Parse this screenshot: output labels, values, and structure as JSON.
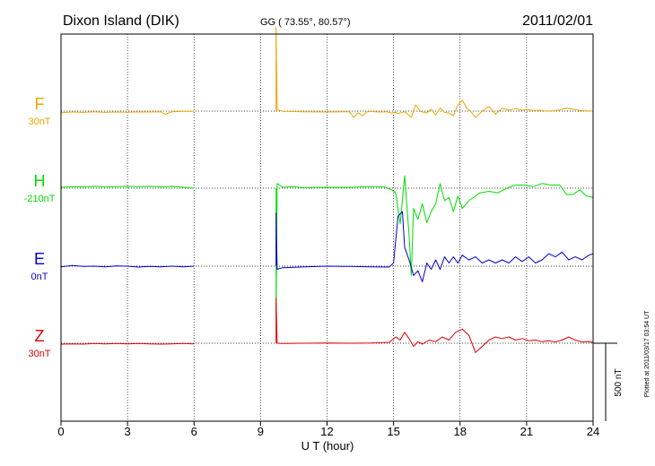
{
  "chart_data": {
    "type": "line",
    "title": "Dixon Island (DIK)",
    "coords": "GG ( 73.55°,  80.57°)",
    "date": "2011/02/01",
    "xlabel": "U T (hour)",
    "xlim": [
      0,
      24
    ],
    "xticks": [
      "0",
      "3",
      "6",
      "9",
      "12",
      "15",
      "18",
      "21",
      "24"
    ],
    "scale_label": "500 nT",
    "scale_nT": 500,
    "footer": "Plotted at 2011/03/17 03:54 UT",
    "grid": true,
    "series": [
      {
        "name": "F",
        "baseline": "30nT",
        "color": "#f0a500",
        "key": "F"
      },
      {
        "name": "H",
        "baseline": "-210nT",
        "color": "#00dd00",
        "key": "H"
      },
      {
        "name": "E",
        "baseline": "0nT",
        "color": "#0000cc",
        "key": "E"
      },
      {
        "name": "Z",
        "baseline": "30nT",
        "color": "#dd0000",
        "key": "Z"
      }
    ],
    "data_gap": [
      6.0,
      9.7
    ],
    "traces_nT": {
      "F": [
        [
          0,
          -10
        ],
        [
          0.5,
          -6
        ],
        [
          1,
          -8
        ],
        [
          1.5,
          -4
        ],
        [
          2,
          -8
        ],
        [
          2.5,
          -6
        ],
        [
          3,
          -7
        ],
        [
          3.5,
          -5
        ],
        [
          4,
          -6
        ],
        [
          4.5,
          -4
        ],
        [
          4.7,
          -20
        ],
        [
          5,
          -4
        ],
        [
          5.5,
          -2
        ],
        [
          6,
          -2
        ],
        [
          9.7,
          540
        ],
        [
          9.75,
          10
        ],
        [
          10,
          -2
        ],
        [
          11,
          -4
        ],
        [
          12,
          -6
        ],
        [
          13,
          -4
        ],
        [
          13.2,
          -40
        ],
        [
          13.4,
          -10
        ],
        [
          13.6,
          -30
        ],
        [
          13.8,
          -4
        ],
        [
          14,
          -2
        ],
        [
          14.3,
          -6
        ],
        [
          14.7,
          -4
        ],
        [
          14.9,
          -12
        ],
        [
          15.1,
          -8
        ],
        [
          15.2,
          -16
        ],
        [
          15.5,
          -4
        ],
        [
          15.8,
          -40
        ],
        [
          16.0,
          40
        ],
        [
          16.2,
          -2
        ],
        [
          16.5,
          -12
        ],
        [
          16.7,
          12
        ],
        [
          16.9,
          -25
        ],
        [
          17.1,
          20
        ],
        [
          17.3,
          -8
        ],
        [
          17.5,
          -12
        ],
        [
          17.7,
          -30
        ],
        [
          17.9,
          40
        ],
        [
          18.1,
          70
        ],
        [
          18.3,
          20
        ],
        [
          18.5,
          -6
        ],
        [
          18.7,
          -40
        ],
        [
          19.0,
          0
        ],
        [
          19.3,
          30
        ],
        [
          19.6,
          -20
        ],
        [
          19.9,
          20
        ],
        [
          20.2,
          6
        ],
        [
          20.5,
          16
        ],
        [
          20.8,
          6
        ],
        [
          21.0,
          10
        ],
        [
          21.3,
          4
        ],
        [
          21.6,
          6
        ],
        [
          21.9,
          0
        ],
        [
          22.2,
          2
        ],
        [
          22.5,
          8
        ],
        [
          22.8,
          20
        ],
        [
          23.1,
          12
        ],
        [
          23.4,
          4
        ],
        [
          23.7,
          2
        ],
        [
          24,
          0
        ]
      ],
      "H": [
        [
          0,
          6
        ],
        [
          0.5,
          10
        ],
        [
          1,
          8
        ],
        [
          1.5,
          12
        ],
        [
          2,
          8
        ],
        [
          2.5,
          10
        ],
        [
          3,
          12
        ],
        [
          3.5,
          10
        ],
        [
          4,
          12
        ],
        [
          4.5,
          8
        ],
        [
          5,
          12
        ],
        [
          5.5,
          6
        ],
        [
          6,
          0
        ],
        [
          9.7,
          -840
        ],
        [
          9.75,
          30
        ],
        [
          10,
          6
        ],
        [
          10.5,
          10
        ],
        [
          11,
          2
        ],
        [
          11.5,
          6
        ],
        [
          12,
          6
        ],
        [
          13,
          6
        ],
        [
          14,
          10
        ],
        [
          14.6,
          8
        ],
        [
          14.9,
          -10
        ],
        [
          15.1,
          -30
        ],
        [
          15.3,
          -230
        ],
        [
          15.5,
          80
        ],
        [
          15.7,
          -300
        ],
        [
          15.8,
          -560
        ],
        [
          15.9,
          -130
        ],
        [
          16.1,
          -200
        ],
        [
          16.3,
          -100
        ],
        [
          16.5,
          -220
        ],
        [
          16.7,
          -150
        ],
        [
          16.9,
          -100
        ],
        [
          17.1,
          30
        ],
        [
          17.3,
          -80
        ],
        [
          17.5,
          -60
        ],
        [
          17.7,
          -150
        ],
        [
          17.9,
          -50
        ],
        [
          18.1,
          -130
        ],
        [
          18.4,
          -80
        ],
        [
          18.6,
          -60
        ],
        [
          18.9,
          -30
        ],
        [
          19.3,
          -20
        ],
        [
          19.7,
          -30
        ],
        [
          20.1,
          0
        ],
        [
          20.5,
          20
        ],
        [
          20.9,
          20
        ],
        [
          21.3,
          10
        ],
        [
          21.7,
          30
        ],
        [
          22.1,
          20
        ],
        [
          22.5,
          20
        ],
        [
          22.8,
          -40
        ],
        [
          23.1,
          -40
        ],
        [
          23.4,
          -10
        ],
        [
          23.7,
          -50
        ],
        [
          24,
          -60
        ]
      ],
      "E": [
        [
          0,
          -4
        ],
        [
          0.5,
          4
        ],
        [
          1,
          -2
        ],
        [
          1.5,
          0
        ],
        [
          2,
          -4
        ],
        [
          2.5,
          2
        ],
        [
          3,
          0
        ],
        [
          3.5,
          -6
        ],
        [
          4,
          -2
        ],
        [
          4.5,
          -4
        ],
        [
          5,
          0
        ],
        [
          5.5,
          -4
        ],
        [
          6,
          0
        ],
        [
          9.7,
          340
        ],
        [
          9.75,
          -20
        ],
        [
          10,
          -10
        ],
        [
          11,
          -4
        ],
        [
          12,
          0
        ],
        [
          13,
          -2
        ],
        [
          14,
          -4
        ],
        [
          14.8,
          -6
        ],
        [
          15.0,
          20
        ],
        [
          15.2,
          320
        ],
        [
          15.4,
          350
        ],
        [
          15.5,
          120
        ],
        [
          15.7,
          40
        ],
        [
          15.9,
          -60
        ],
        [
          16.1,
          -30
        ],
        [
          16.3,
          -100
        ],
        [
          16.5,
          20
        ],
        [
          16.7,
          -20
        ],
        [
          16.9,
          40
        ],
        [
          17.1,
          -20
        ],
        [
          17.3,
          60
        ],
        [
          17.5,
          20
        ],
        [
          17.7,
          60
        ],
        [
          17.9,
          20
        ],
        [
          18.1,
          70
        ],
        [
          18.4,
          40
        ],
        [
          18.7,
          60
        ],
        [
          19.0,
          20
        ],
        [
          19.3,
          40
        ],
        [
          19.6,
          20
        ],
        [
          19.9,
          40
        ],
        [
          20.2,
          20
        ],
        [
          20.5,
          60
        ],
        [
          20.8,
          30
        ],
        [
          21.1,
          60
        ],
        [
          21.4,
          20
        ],
        [
          21.7,
          40
        ],
        [
          22.0,
          80
        ],
        [
          22.3,
          60
        ],
        [
          22.6,
          90
        ],
        [
          22.9,
          40
        ],
        [
          23.2,
          60
        ],
        [
          23.5,
          40
        ],
        [
          23.8,
          70
        ],
        [
          24,
          80
        ]
      ],
      "Z": [
        [
          0,
          -6
        ],
        [
          0.5,
          -4
        ],
        [
          1,
          -6
        ],
        [
          1.5,
          -2
        ],
        [
          2,
          -4
        ],
        [
          2.5,
          -2
        ],
        [
          3,
          -4
        ],
        [
          3.5,
          -2
        ],
        [
          4,
          -4
        ],
        [
          4.5,
          -6
        ],
        [
          5,
          -4
        ],
        [
          5.5,
          -2
        ],
        [
          6,
          -4
        ],
        [
          9.7,
          290
        ],
        [
          9.75,
          0
        ],
        [
          10,
          -2
        ],
        [
          11,
          0
        ],
        [
          12,
          2
        ],
        [
          13,
          0
        ],
        [
          14,
          2
        ],
        [
          14.8,
          6
        ],
        [
          15.1,
          40
        ],
        [
          15.3,
          20
        ],
        [
          15.5,
          70
        ],
        [
          15.7,
          30
        ],
        [
          15.9,
          -20
        ],
        [
          16.1,
          10
        ],
        [
          16.3,
          -6
        ],
        [
          16.6,
          20
        ],
        [
          16.9,
          10
        ],
        [
          17.2,
          40
        ],
        [
          17.5,
          20
        ],
        [
          17.8,
          70
        ],
        [
          18.1,
          90
        ],
        [
          18.4,
          50
        ],
        [
          18.7,
          -60
        ],
        [
          19.0,
          -20
        ],
        [
          19.3,
          20
        ],
        [
          19.6,
          40
        ],
        [
          19.9,
          30
        ],
        [
          20.2,
          40
        ],
        [
          20.5,
          20
        ],
        [
          20.8,
          30
        ],
        [
          21.1,
          16
        ],
        [
          21.4,
          20
        ],
        [
          21.7,
          10
        ],
        [
          22.0,
          16
        ],
        [
          22.3,
          8
        ],
        [
          22.6,
          20
        ],
        [
          22.9,
          40
        ],
        [
          23.2,
          20
        ],
        [
          23.5,
          8
        ],
        [
          23.8,
          10
        ],
        [
          24,
          6
        ]
      ]
    }
  }
}
